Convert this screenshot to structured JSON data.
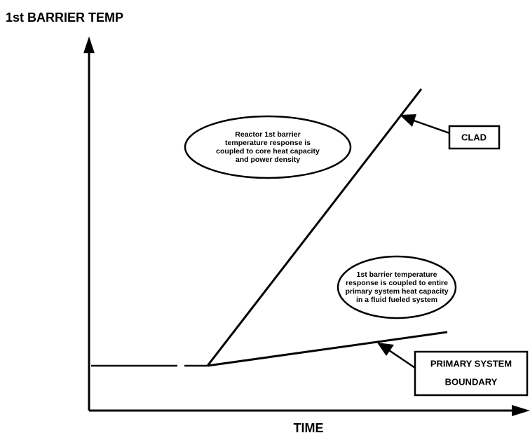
{
  "axis_labels": {
    "y": "1st BARRIER TEMP",
    "x": "TIME"
  },
  "annotations": [
    {
      "lines": [
        "Reactor 1st barrier",
        "temperature response is",
        "coupled to core heat capacity",
        "and power density"
      ]
    },
    {
      "lines": [
        "1st barrier temperature",
        "response is coupled to entire",
        "primary system heat capacity",
        "in a fluid fueled system"
      ]
    }
  ],
  "curves": [
    {
      "lines": [
        "CLAD"
      ]
    },
    {
      "lines": [
        "PRIMARY SYSTEM",
        "BOUNDARY"
      ]
    }
  ]
}
